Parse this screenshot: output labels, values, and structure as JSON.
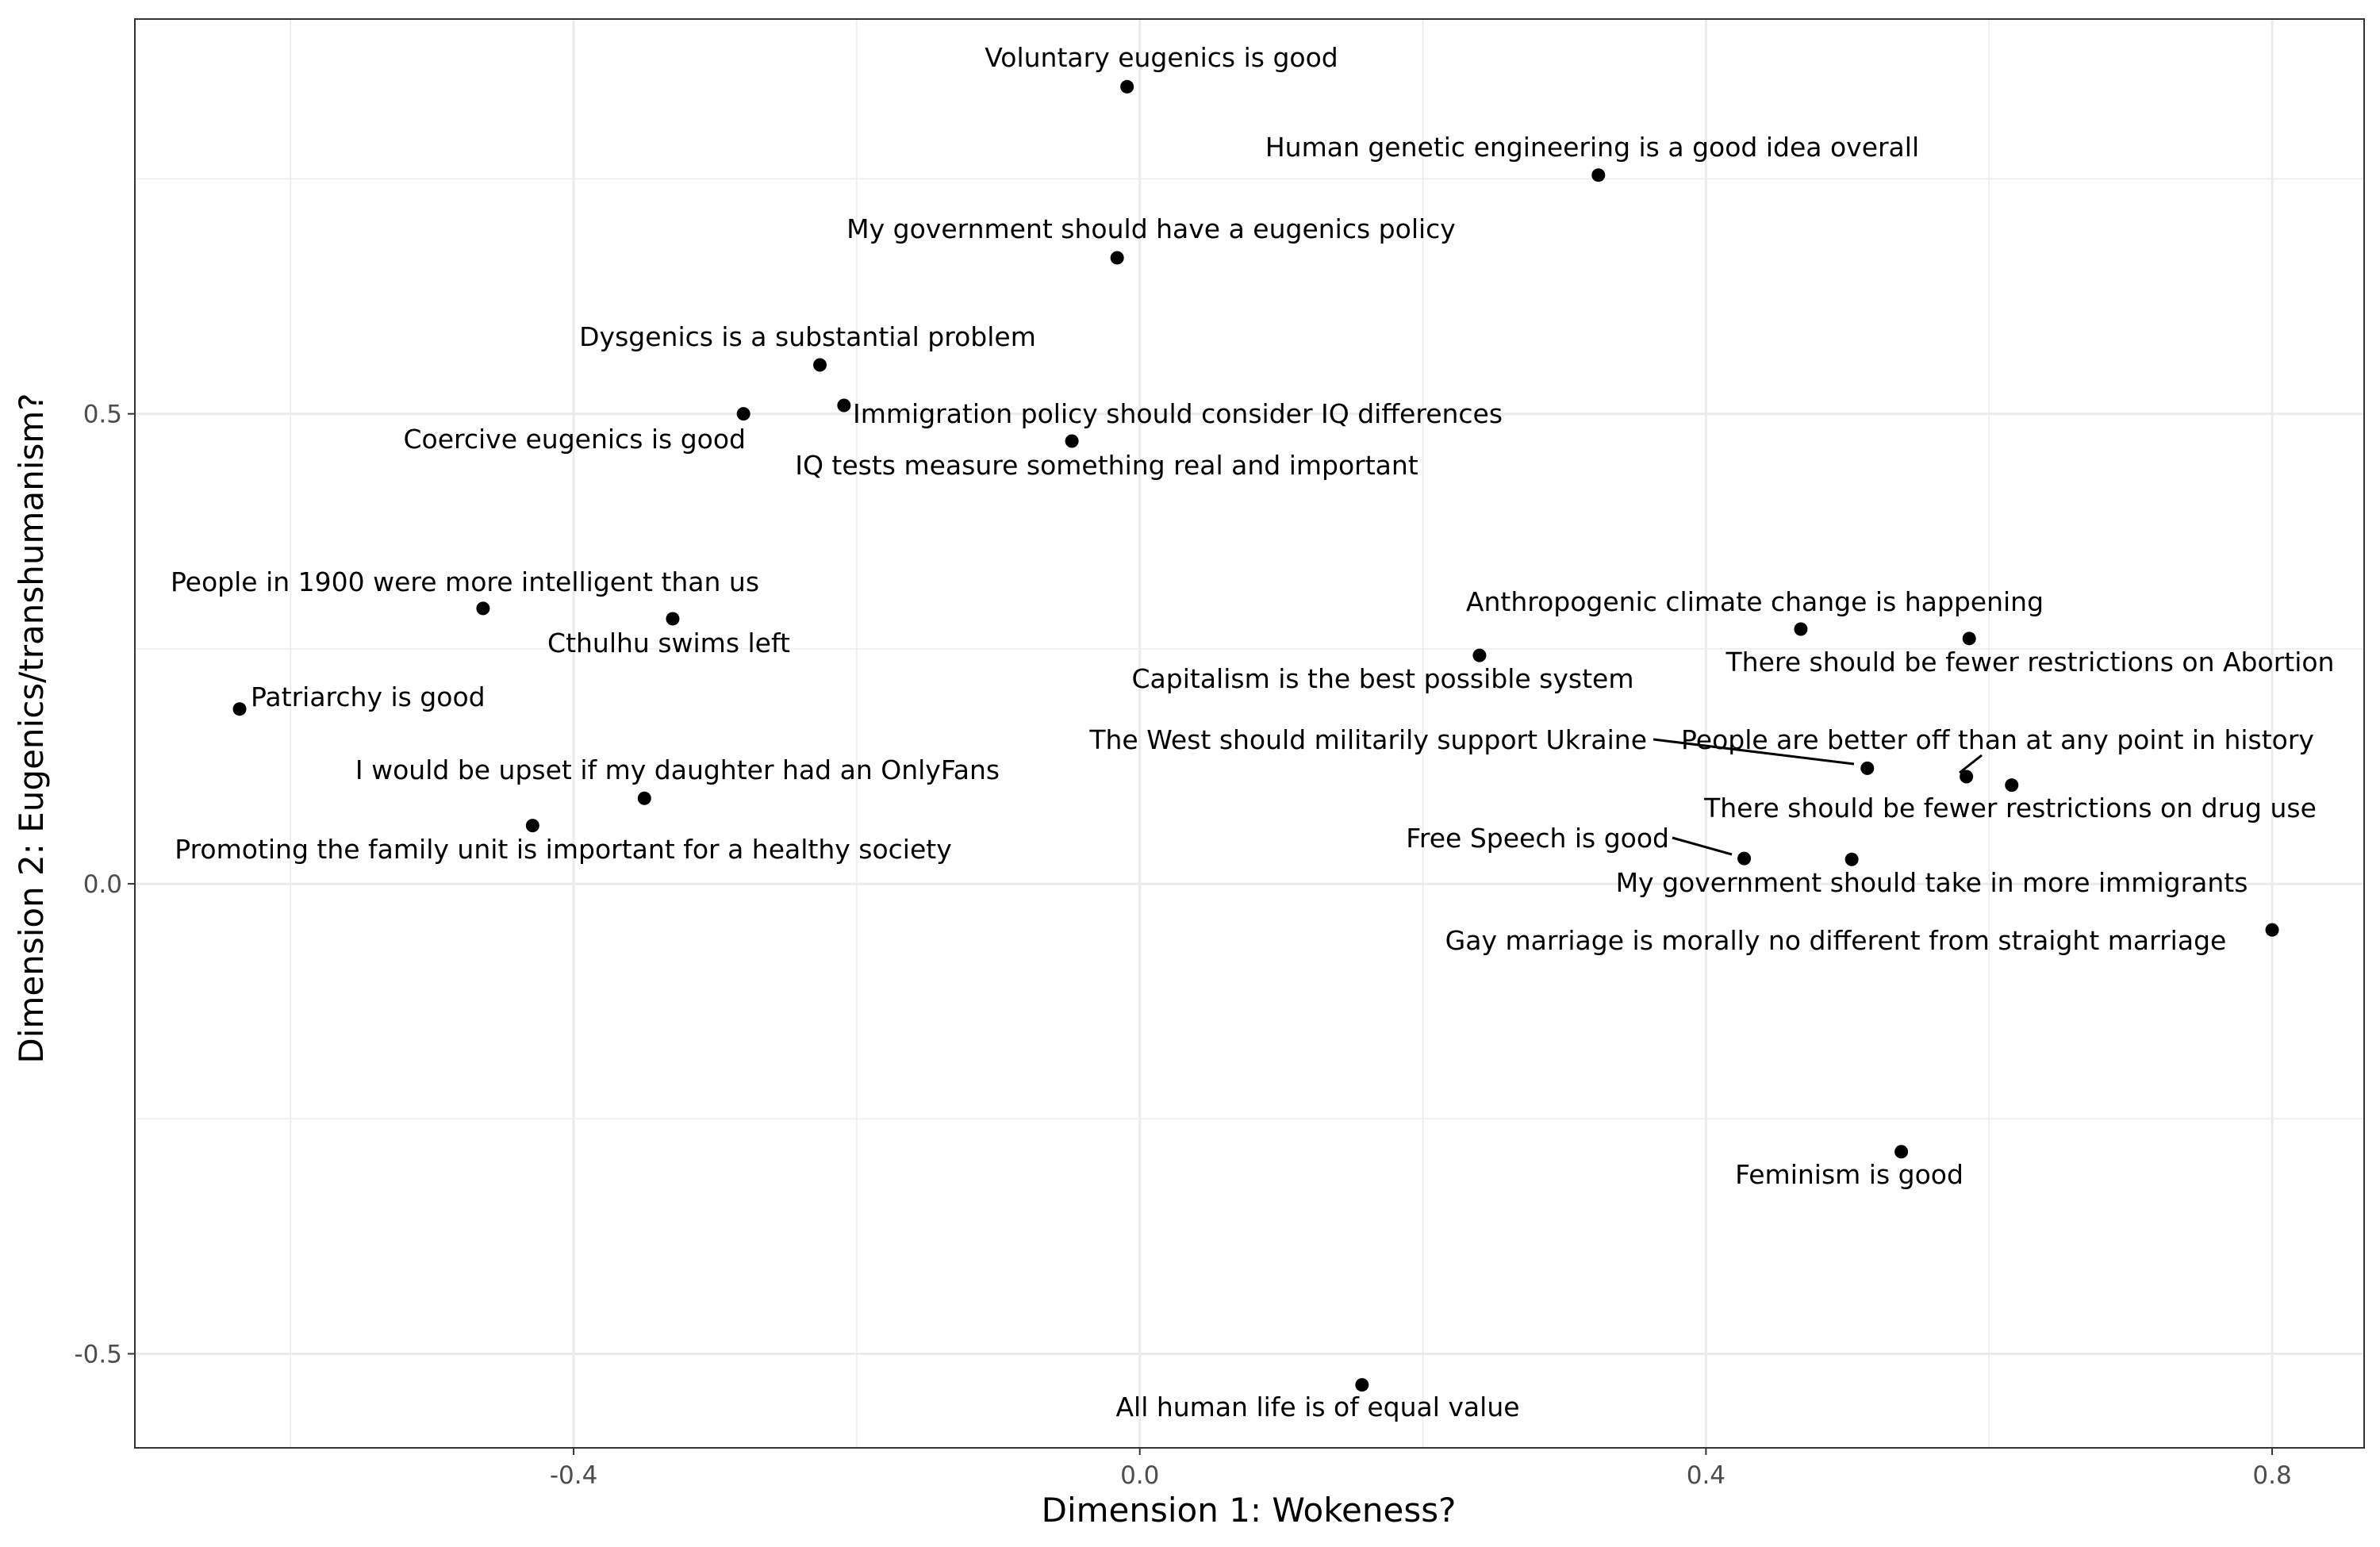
{
  "chart_data": {
    "type": "scatter",
    "xlabel": "Dimension 1: Wokeness?",
    "ylabel": "Dimension 2: Eugenics/transhumanism?",
    "xlim": [
      -0.71,
      0.865
    ],
    "ylim": [
      -0.6,
      0.92
    ],
    "x_ticks": [
      -0.4,
      0.0,
      0.4,
      0.8
    ],
    "x_tick_labels": [
      "-0.4",
      "0.0",
      "0.4",
      "0.8"
    ],
    "y_ticks": [
      -0.5,
      0.0,
      0.5
    ],
    "y_tick_labels": [
      "-0.5",
      "0.0",
      "0.5"
    ],
    "grid": true,
    "points": [
      {
        "label": "Voluntary eugenics is good",
        "x": -0.009,
        "y": 0.848
      },
      {
        "label": "Human genetic engineering is a good idea overall",
        "x": 0.324,
        "y": 0.754
      },
      {
        "label": "My government should have a eugenics policy",
        "x": -0.016,
        "y": 0.666
      },
      {
        "label": "Dysgenics is a substantial problem",
        "x": -0.226,
        "y": 0.552
      },
      {
        "label": "Coercive eugenics is good",
        "x": -0.28,
        "y": 0.5
      },
      {
        "label": "Immigration policy should consider IQ differences",
        "x": -0.209,
        "y": 0.509
      },
      {
        "label": "IQ tests measure something real and important",
        "x": -0.048,
        "y": 0.471
      },
      {
        "label": "People in 1900 were more intelligent than us",
        "x": -0.464,
        "y": 0.293
      },
      {
        "label": "Cthulhu swims left",
        "x": -0.33,
        "y": 0.282
      },
      {
        "label": "Anthropogenic climate change is happening",
        "x": 0.467,
        "y": 0.271
      },
      {
        "label": "There should be fewer restrictions on Abortion",
        "x": 0.586,
        "y": 0.261
      },
      {
        "label": "Capitalism is the best possible system",
        "x": 0.24,
        "y": 0.243
      },
      {
        "label": "Patriarchy is good",
        "x": -0.636,
        "y": 0.186
      },
      {
        "label": "The West should militarily support Ukraine",
        "x": 0.514,
        "y": 0.123
      },
      {
        "label": "People are better off than at any point in history",
        "x": 0.584,
        "y": 0.114
      },
      {
        "label": "There should be fewer restrictions on drug use",
        "x": 0.616,
        "y": 0.105
      },
      {
        "label": "I would be upset if my daughter had an OnlyFans",
        "x": -0.35,
        "y": 0.091
      },
      {
        "label": "Promoting the family unit is important for a healthy society",
        "x": -0.429,
        "y": 0.062
      },
      {
        "label": "Free Speech is good",
        "x": 0.427,
        "y": 0.027
      },
      {
        "label": "My government should take in more immigrants",
        "x": 0.503,
        "y": 0.026
      },
      {
        "label": "Gay marriage is morally no different from straight marriage",
        "x": 0.8,
        "y": -0.049
      },
      {
        "label": "Feminism is good",
        "x": 0.538,
        "y": -0.285
      },
      {
        "label": "All human life is of equal value",
        "x": 0.157,
        "y": -0.533
      }
    ]
  }
}
